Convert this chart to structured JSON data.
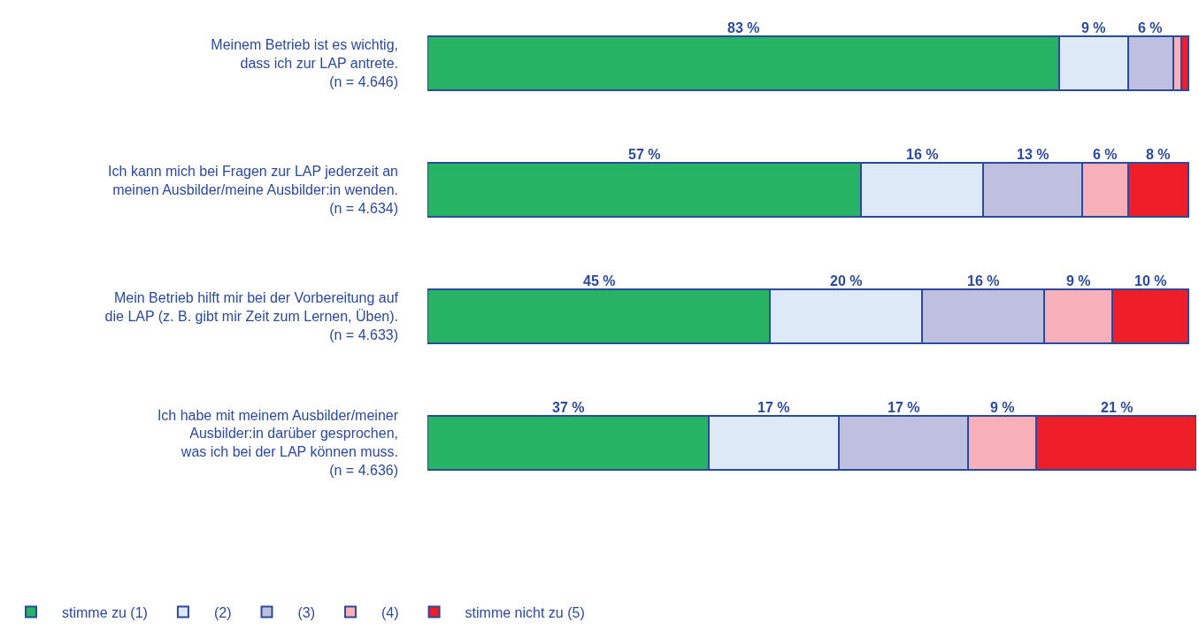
{
  "chart_data": {
    "type": "bar",
    "orientation": "horizontal",
    "stacked": true,
    "categories": [
      "Meinem Betrieb ist es wichtig,\ndass ich zur LAP antrete.\n(n = 4.646)",
      "Ich kann mich bei Fragen zur LAP jederzeit an\nmeinen Ausbilder/meine Ausbilder:in wenden.\n(n = 4.634)",
      "Mein Betrieb hilft mir bei der Vorbereitung auf\ndie LAP (z. B. gibt mir Zeit zum Lernen, Üben).\n(n = 4.633)",
      "Ich habe mit meinem Ausbilder/meiner\nAusbilder:in darüber gesprochen,\nwas ich bei der LAP können muss.\n(n = 4.636)"
    ],
    "tick_labels": false,
    "legend": "bottom left",
    "series": [
      {
        "name": "stimme zu (1)",
        "color": "#27b364",
        "values": [
          83,
          57,
          45,
          37
        ],
        "value_labels": [
          "83 %",
          "57 %",
          "45 %",
          "37 %"
        ]
      },
      {
        "name": "(2)",
        "color": "#dde9f6",
        "values": [
          9,
          16,
          20,
          17
        ],
        "value_labels": [
          "9 %",
          "16 %",
          "20 %",
          "17 %"
        ]
      },
      {
        "name": "(3)",
        "color": "#bfc0df",
        "values": [
          6,
          13,
          16,
          17
        ],
        "value_labels": [
          "6 %",
          "13 %",
          "16 %",
          "17 %"
        ]
      },
      {
        "name": "(4)",
        "color": "#f7b0b9",
        "values": [
          1,
          6,
          9,
          9
        ],
        "value_labels": [
          null,
          "6 %",
          "9 %",
          "9 %"
        ]
      },
      {
        "name": "stimme nicht zu (5)",
        "color": "#ee1f29",
        "values": [
          1,
          8,
          10,
          21
        ],
        "value_labels": [
          null,
          "8 %",
          "10 %",
          "21 %"
        ]
      }
    ]
  }
}
